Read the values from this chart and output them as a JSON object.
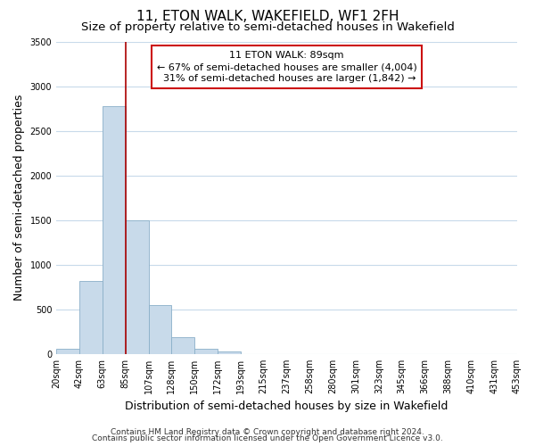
{
  "title": "11, ETON WALK, WAKEFIELD, WF1 2FH",
  "subtitle": "Size of property relative to semi-detached houses in Wakefield",
  "bar_heights": [
    60,
    820,
    2780,
    1500,
    550,
    185,
    55,
    30,
    0,
    0,
    0,
    0,
    0,
    0,
    0,
    0,
    0,
    0,
    0,
    0
  ],
  "bin_labels": [
    "20sqm",
    "42sqm",
    "63sqm",
    "85sqm",
    "107sqm",
    "128sqm",
    "150sqm",
    "172sqm",
    "193sqm",
    "215sqm",
    "237sqm",
    "258sqm",
    "280sqm",
    "301sqm",
    "323sqm",
    "345sqm",
    "366sqm",
    "388sqm",
    "410sqm",
    "431sqm",
    "453sqm"
  ],
  "bar_color": "#c8daea",
  "bar_edge_color": "#8aafc8",
  "vline_x_bin": 3,
  "vline_color": "#aa0000",
  "ylabel": "Number of semi-detached properties",
  "xlabel": "Distribution of semi-detached houses by size in Wakefield",
  "ylim": [
    0,
    3500
  ],
  "yticks": [
    0,
    500,
    1000,
    1500,
    2000,
    2500,
    3000,
    3500
  ],
  "annotation_line1": "11 ETON WALK: 89sqm",
  "annotation_line2": "← 67% of semi-detached houses are smaller (4,004)",
  "annotation_line3": "  31% of semi-detached houses are larger (1,842) →",
  "footer_line1": "Contains HM Land Registry data © Crown copyright and database right 2024.",
  "footer_line2": "Contains public sector information licensed under the Open Government Licence v3.0.",
  "background_color": "#ffffff",
  "grid_color": "#c8daea",
  "title_fontsize": 11,
  "subtitle_fontsize": 9.5,
  "axis_label_fontsize": 9,
  "tick_fontsize": 7,
  "annotation_fontsize": 8,
  "footer_fontsize": 6.5
}
